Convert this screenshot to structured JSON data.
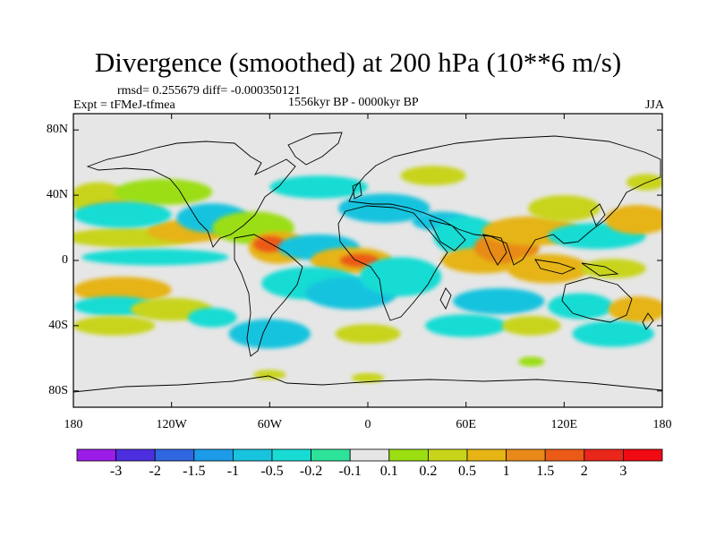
{
  "title": "Divergence (smoothed) at 200 hPa (10**6 m/s)",
  "stats_line": "rmsd= 0.255679 diff= -0.000350121",
  "experiment": "Expt = tFMeJ-tfmea",
  "period": "1556kyr BP - 0000kyr BP",
  "season": "JJA",
  "map": {
    "lon_range": [
      -180,
      180
    ],
    "lat_range": [
      -90,
      90
    ],
    "x_ticks": [
      {
        "lon": -180,
        "label": "180"
      },
      {
        "lon": -120,
        "label": "120W"
      },
      {
        "lon": -60,
        "label": "60W"
      },
      {
        "lon": 0,
        "label": "0"
      },
      {
        "lon": 60,
        "label": "60E"
      },
      {
        "lon": 120,
        "label": "120E"
      },
      {
        "lon": 180,
        "label": "180"
      }
    ],
    "y_ticks": [
      {
        "lat": 80,
        "label": "80N"
      },
      {
        "lat": 40,
        "label": "40N"
      },
      {
        "lat": 0,
        "label": "0"
      },
      {
        "lat": -40,
        "label": "40S"
      },
      {
        "lat": -80,
        "label": "80S"
      }
    ],
    "background_color": "#e6e6e6"
  },
  "colorbar": {
    "labels": [
      "-3",
      "-2",
      "-1.5",
      "-1",
      "-0.5",
      "-0.2",
      "-0.1",
      "0.1",
      "0.2",
      "0.5",
      "1",
      "1.5",
      "2",
      "3"
    ],
    "colors": [
      "#9b1ce8",
      "#4d2fe0",
      "#2f67e0",
      "#1d9be8",
      "#18c3de",
      "#18dcd4",
      "#2de39a",
      "#e6e6e6",
      "#9bde12",
      "#c8d41a",
      "#e6b415",
      "#e88a17",
      "#ec5a17",
      "#e8261a",
      "#f00a14"
    ]
  },
  "anomaly_patches": [
    {
      "lon": -165,
      "lat": 38,
      "rx": 18,
      "ry": 10,
      "level": 9
    },
    {
      "lon": -150,
      "lat": 30,
      "rx": 25,
      "ry": 7,
      "level": 10
    },
    {
      "lon": -125,
      "lat": 42,
      "rx": 30,
      "ry": 8,
      "level": 8
    },
    {
      "lon": -145,
      "lat": 14,
      "rx": 40,
      "ry": 6,
      "level": 9
    },
    {
      "lon": -110,
      "lat": 18,
      "rx": 25,
      "ry": 7,
      "level": 10
    },
    {
      "lon": -150,
      "lat": 28,
      "rx": 30,
      "ry": 8,
      "level": 5
    },
    {
      "lon": -130,
      "lat": 2,
      "rx": 45,
      "ry": 5,
      "level": 5
    },
    {
      "lon": -95,
      "lat": 26,
      "rx": 22,
      "ry": 9,
      "level": 4
    },
    {
      "lon": -70,
      "lat": 20,
      "rx": 25,
      "ry": 10,
      "level": 8
    },
    {
      "lon": -55,
      "lat": 8,
      "rx": 18,
      "ry": 10,
      "level": 10
    },
    {
      "lon": -60,
      "lat": 10,
      "rx": 10,
      "ry": 5,
      "level": 12
    },
    {
      "lon": -30,
      "lat": 8,
      "rx": 25,
      "ry": 8,
      "level": 4
    },
    {
      "lon": -10,
      "lat": 0,
      "rx": 25,
      "ry": 8,
      "level": 10
    },
    {
      "lon": -5,
      "lat": 0,
      "rx": 12,
      "ry": 4,
      "level": 12
    },
    {
      "lon": -35,
      "lat": -14,
      "rx": 30,
      "ry": 10,
      "level": 5
    },
    {
      "lon": -10,
      "lat": -20,
      "rx": 28,
      "ry": 10,
      "level": 4
    },
    {
      "lon": 20,
      "lat": -10,
      "rx": 25,
      "ry": 12,
      "level": 5
    },
    {
      "lon": 10,
      "lat": 32,
      "rx": 28,
      "ry": 9,
      "level": 4
    },
    {
      "lon": 45,
      "lat": 24,
      "rx": 18,
      "ry": 6,
      "level": 4
    },
    {
      "lon": 60,
      "lat": 15,
      "rx": 20,
      "ry": 12,
      "level": 5
    },
    {
      "lon": 70,
      "lat": 0,
      "rx": 25,
      "ry": 8,
      "level": 10
    },
    {
      "lon": 85,
      "lat": 8,
      "rx": 20,
      "ry": 10,
      "level": 11
    },
    {
      "lon": 100,
      "lat": 18,
      "rx": 30,
      "ry": 9,
      "level": 10
    },
    {
      "lon": 120,
      "lat": 32,
      "rx": 22,
      "ry": 8,
      "level": 9
    },
    {
      "lon": 110,
      "lat": -5,
      "rx": 25,
      "ry": 9,
      "level": 10
    },
    {
      "lon": 140,
      "lat": 15,
      "rx": 30,
      "ry": 8,
      "level": 5
    },
    {
      "lon": 165,
      "lat": 25,
      "rx": 20,
      "ry": 9,
      "level": 10
    },
    {
      "lon": 150,
      "lat": -5,
      "rx": 20,
      "ry": 6,
      "level": 9
    },
    {
      "lon": 80,
      "lat": -25,
      "rx": 28,
      "ry": 8,
      "level": 4
    },
    {
      "lon": 130,
      "lat": -28,
      "rx": 20,
      "ry": 8,
      "level": 5
    },
    {
      "lon": 165,
      "lat": -30,
      "rx": 18,
      "ry": 8,
      "level": 10
    },
    {
      "lon": -150,
      "lat": -18,
      "rx": 30,
      "ry": 8,
      "level": 10
    },
    {
      "lon": -155,
      "lat": -28,
      "rx": 25,
      "ry": 6,
      "level": 5
    },
    {
      "lon": -120,
      "lat": -30,
      "rx": 25,
      "ry": 7,
      "level": 9
    },
    {
      "lon": -95,
      "lat": -35,
      "rx": 15,
      "ry": 6,
      "level": 5
    },
    {
      "lon": -155,
      "lat": -40,
      "rx": 25,
      "ry": 6,
      "level": 9
    },
    {
      "lon": -60,
      "lat": -45,
      "rx": 25,
      "ry": 9,
      "level": 4
    },
    {
      "lon": 0,
      "lat": -45,
      "rx": 20,
      "ry": 6,
      "level": 9
    },
    {
      "lon": 60,
      "lat": -40,
      "rx": 25,
      "ry": 7,
      "level": 5
    },
    {
      "lon": 100,
      "lat": -40,
      "rx": 18,
      "ry": 6,
      "level": 9
    },
    {
      "lon": 150,
      "lat": -45,
      "rx": 25,
      "ry": 8,
      "level": 5
    },
    {
      "lon": 40,
      "lat": 52,
      "rx": 20,
      "ry": 6,
      "level": 9
    },
    {
      "lon": -30,
      "lat": 45,
      "rx": 30,
      "ry": 7,
      "level": 5
    },
    {
      "lon": 170,
      "lat": 48,
      "rx": 12,
      "ry": 5,
      "level": 9
    },
    {
      "lon": -60,
      "lat": -70,
      "rx": 10,
      "ry": 3,
      "level": 9
    },
    {
      "lon": 0,
      "lat": -72,
      "rx": 10,
      "ry": 3,
      "level": 9
    },
    {
      "lon": 100,
      "lat": -62,
      "rx": 8,
      "ry": 3,
      "level": 8
    }
  ]
}
